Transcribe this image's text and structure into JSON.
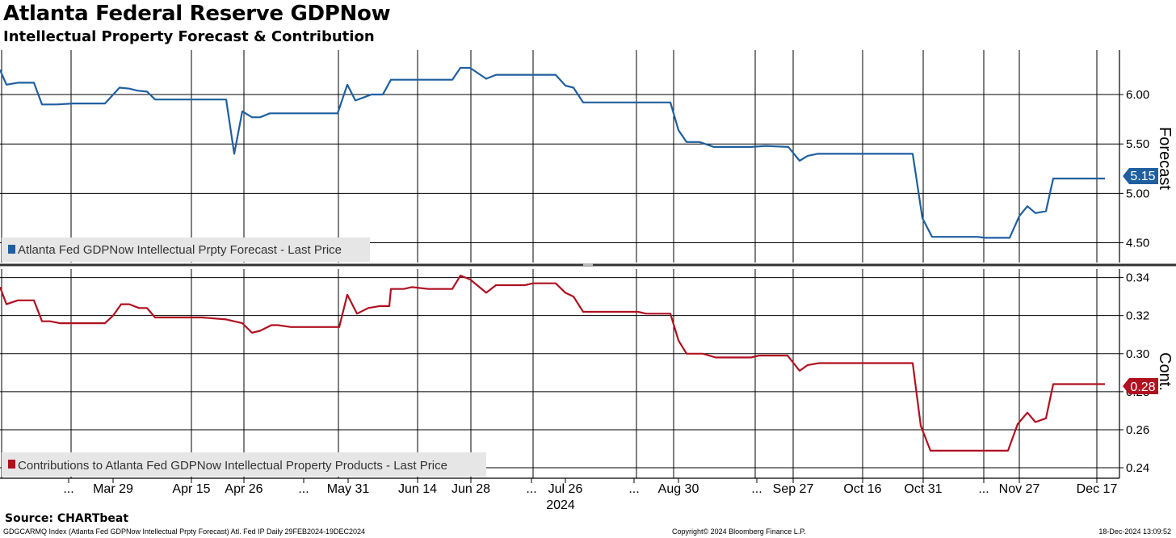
{
  "title": "Atlanta Federal Reserve GDPNow",
  "subtitle": "Intellectual Property Forecast & Contribution",
  "source": "Source: CHARTbeat",
  "footer": {
    "left": "GDGCARMQ Index (Atlanta Fed GDPNow Intellectual Prpty Forecast) Atl. Fed IP  Daily 29FEB2024-19DEC2024",
    "center": "Copyright© 2024 Bloomberg Finance L.P.",
    "right": "18-Dec-2024 13:09:52"
  },
  "colors": {
    "forecast": "#1f5fa0",
    "contribution": "#b01020"
  },
  "chart_data": [
    {
      "type": "line",
      "panel": "top",
      "ylabel": "Forecast",
      "ylim": [
        4.3,
        6.45
      ],
      "yticks": [
        "6.00",
        "5.50",
        "5.00",
        "4.50"
      ],
      "x_ticks": [
        "...",
        "Mar 29",
        "Apr 15",
        "Apr 26",
        "...",
        "May 31",
        "Jun 14",
        "Jun 28",
        "...",
        "Jul 26",
        "...",
        "Aug 30",
        "...",
        "Sep 27",
        "Oct 16",
        "Oct 31",
        "...",
        "Nov 27",
        "Dec 17"
      ],
      "x_year": "2024",
      "last_value_label": "5.15",
      "legend_position": "bottom-left",
      "series": [
        {
          "name": "Atlanta Fed GDPNow Intellectual Prpty Forecast - Last Price",
          "color": "#1f5fa0",
          "points": [
            [
              0,
              6.25
            ],
            [
              8,
              6.1
            ],
            [
              22,
              6.12
            ],
            [
              42,
              6.12
            ],
            [
              52,
              5.9
            ],
            [
              70,
              5.9
            ],
            [
              90,
              5.91
            ],
            [
              130,
              5.91
            ],
            [
              148,
              6.07
            ],
            [
              160,
              6.06
            ],
            [
              170,
              6.04
            ],
            [
              182,
              6.03
            ],
            [
              192,
              5.95
            ],
            [
              240,
              5.95
            ],
            [
              280,
              5.95
            ],
            [
              290,
              5.4
            ],
            [
              300,
              5.83
            ],
            [
              312,
              5.77
            ],
            [
              322,
              5.77
            ],
            [
              334,
              5.81
            ],
            [
              360,
              5.81
            ],
            [
              418,
              5.81
            ],
            [
              430,
              6.1
            ],
            [
              440,
              5.94
            ],
            [
              450,
              5.97
            ],
            [
              460,
              6.0
            ],
            [
              474,
              6.0
            ],
            [
              484,
              6.15
            ],
            [
              520,
              6.15
            ],
            [
              560,
              6.15
            ],
            [
              570,
              6.27
            ],
            [
              582,
              6.27
            ],
            [
              602,
              6.16
            ],
            [
              614,
              6.2
            ],
            [
              650,
              6.2
            ],
            [
              688,
              6.2
            ],
            [
              700,
              6.09
            ],
            [
              710,
              6.07
            ],
            [
              722,
              5.92
            ],
            [
              780,
              5.92
            ],
            [
              830,
              5.92
            ],
            [
              840,
              5.64
            ],
            [
              850,
              5.52
            ],
            [
              866,
              5.52
            ],
            [
              884,
              5.47
            ],
            [
              930,
              5.47
            ],
            [
              948,
              5.48
            ],
            [
              976,
              5.47
            ],
            [
              990,
              5.33
            ],
            [
              1000,
              5.38
            ],
            [
              1012,
              5.4
            ],
            [
              1040,
              5.4
            ],
            [
              1130,
              5.4
            ],
            [
              1142,
              4.75
            ],
            [
              1154,
              4.56
            ],
            [
              1210,
              4.56
            ],
            [
              1220,
              4.55
            ],
            [
              1250,
              4.55
            ],
            [
              1262,
              4.77
            ],
            [
              1272,
              4.87
            ],
            [
              1282,
              4.8
            ],
            [
              1295,
              4.82
            ],
            [
              1304,
              5.15
            ],
            [
              1368,
              5.15
            ]
          ]
        }
      ]
    },
    {
      "type": "line",
      "panel": "bottom",
      "ylabel": "Cont.",
      "ylim": [
        0.2345,
        0.3445
      ],
      "yticks": [
        "0.34",
        "0.32",
        "0.30",
        "0.28",
        "0.26",
        "0.24"
      ],
      "last_value_label": "0.28",
      "legend_position": "bottom-left",
      "series": [
        {
          "name": "Contributions to Atlanta Fed GDPNow Intellectual Property Products - Last Price",
          "color": "#b01020",
          "points": [
            [
              0,
              0.335
            ],
            [
              8,
              0.326
            ],
            [
              22,
              0.328
            ],
            [
              42,
              0.328
            ],
            [
              52,
              0.317
            ],
            [
              62,
              0.317
            ],
            [
              74,
              0.316
            ],
            [
              130,
              0.316
            ],
            [
              140,
              0.32
            ],
            [
              150,
              0.326
            ],
            [
              160,
              0.326
            ],
            [
              172,
              0.324
            ],
            [
              182,
              0.324
            ],
            [
              192,
              0.319
            ],
            [
              230,
              0.319
            ],
            [
              250,
              0.319
            ],
            [
              280,
              0.318
            ],
            [
              300,
              0.316
            ],
            [
              312,
              0.311
            ],
            [
              322,
              0.312
            ],
            [
              336,
              0.315
            ],
            [
              344,
              0.315
            ],
            [
              360,
              0.314
            ],
            [
              420,
              0.314
            ],
            [
              430,
              0.331
            ],
            [
              442,
              0.321
            ],
            [
              456,
              0.324
            ],
            [
              470,
              0.325
            ],
            [
              482,
              0.325
            ],
            [
              484,
              0.334
            ],
            [
              500,
              0.334
            ],
            [
              510,
              0.335
            ],
            [
              530,
              0.334
            ],
            [
              560,
              0.334
            ],
            [
              570,
              0.341
            ],
            [
              582,
              0.339
            ],
            [
              602,
              0.332
            ],
            [
              614,
              0.336
            ],
            [
              650,
              0.336
            ],
            [
              660,
              0.337
            ],
            [
              688,
              0.337
            ],
            [
              700,
              0.332
            ],
            [
              710,
              0.33
            ],
            [
              722,
              0.322
            ],
            [
              790,
              0.322
            ],
            [
              800,
              0.321
            ],
            [
              830,
              0.321
            ],
            [
              840,
              0.307
            ],
            [
              850,
              0.3
            ],
            [
              870,
              0.3
            ],
            [
              886,
              0.298
            ],
            [
              930,
              0.298
            ],
            [
              940,
              0.299
            ],
            [
              975,
              0.299
            ],
            [
              990,
              0.291
            ],
            [
              1000,
              0.294
            ],
            [
              1014,
              0.295
            ],
            [
              1060,
              0.295
            ],
            [
              1070,
              0.295
            ],
            [
              1130,
              0.295
            ],
            [
              1140,
              0.262
            ],
            [
              1152,
              0.249
            ],
            [
              1200,
              0.249
            ],
            [
              1248,
              0.249
            ],
            [
              1260,
              0.263
            ],
            [
              1272,
              0.269
            ],
            [
              1282,
              0.264
            ],
            [
              1295,
              0.266
            ],
            [
              1304,
              0.284
            ],
            [
              1330,
              0.284
            ],
            [
              1368,
              0.284
            ]
          ]
        }
      ]
    }
  ]
}
